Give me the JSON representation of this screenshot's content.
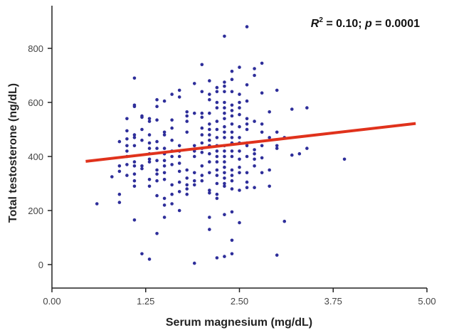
{
  "chart_data": {
    "type": "scatter",
    "title": "",
    "annotation": "R² = 0.10; p = 0.0001",
    "annotation_parts": {
      "r": "R",
      "sup": "2",
      "mid": " = 0.10; ",
      "p": "p",
      "end": " = 0.0001"
    },
    "xlabel": "Serum magnesium (mg/dL)",
    "ylabel": "Total testosterone (ng/dL)",
    "xlim": [
      0,
      5
    ],
    "ylim": [
      -80,
      960
    ],
    "xticks": [
      0,
      1.25,
      2.5,
      3.75,
      5
    ],
    "xtick_labels": [
      "0.00",
      "1.25",
      "2.50",
      "3.75",
      "5.00"
    ],
    "yticks": [
      0,
      200,
      400,
      600,
      800
    ],
    "ytick_labels": [
      "0",
      "200",
      "400",
      "600",
      "800"
    ],
    "grid": false,
    "point_color": "#2e2e9a",
    "line_color": "#e0321c",
    "regression_line": {
      "x": [
        0.45,
        4.85
      ],
      "y": [
        382,
        522
      ]
    },
    "columns": [
      {
        "x": 0.6,
        "y": [
          225
        ]
      },
      {
        "x": 0.8,
        "y": [
          325
        ]
      },
      {
        "x": 0.9,
        "y": [
          455,
          365,
          345,
          260,
          230
        ]
      },
      {
        "x": 1.0,
        "y": [
          540,
          495,
          465,
          440,
          420,
          400,
          370,
          330
        ]
      },
      {
        "x": 1.1,
        "y": [
          690,
          590,
          585,
          480,
          470,
          440,
          380,
          365,
          335,
          310,
          290,
          165
        ]
      },
      {
        "x": 1.2,
        "y": [
          550,
          545,
          500,
          460,
          365,
          355,
          40
        ]
      },
      {
        "x": 1.3,
        "y": [
          540,
          530,
          480,
          450,
          430,
          410,
          390,
          380,
          315,
          290,
          20
        ]
      },
      {
        "x": 1.4,
        "y": [
          610,
          585,
          535,
          455,
          430,
          385,
          350,
          335,
          310,
          255,
          115
        ]
      },
      {
        "x": 1.5,
        "y": [
          605,
          490,
          480,
          430,
          410,
          385,
          365,
          340,
          315,
          245,
          220,
          175
        ]
      },
      {
        "x": 1.6,
        "y": [
          630,
          535,
          505,
          460,
          420,
          400,
          370,
          295,
          260,
          225
        ]
      },
      {
        "x": 1.7,
        "y": [
          645,
          620,
          440,
          420,
          400,
          375,
          345,
          305,
          270,
          200
        ]
      },
      {
        "x": 1.8,
        "y": [
          565,
          550,
          530,
          490,
          350,
          320,
          295,
          280,
          260
        ]
      },
      {
        "x": 1.9,
        "y": [
          670,
          560,
          440,
          420,
          400,
          340,
          310,
          295,
          5
        ]
      },
      {
        "x": 2.0,
        "y": [
          740,
          640,
          560,
          545,
          505,
          480,
          450,
          430,
          415,
          365,
          330,
          310
        ]
      },
      {
        "x": 2.1,
        "y": [
          680,
          630,
          610,
          560,
          520,
          500,
          480,
          460,
          440,
          410,
          380,
          340,
          275,
          265,
          175,
          130
        ]
      },
      {
        "x": 2.2,
        "y": [
          655,
          640,
          600,
          580,
          530,
          500,
          470,
          440,
          420,
          400,
          380,
          350,
          330,
          300,
          260,
          245,
          25
        ]
      },
      {
        "x": 2.3,
        "y": [
          845,
          675,
          660,
          640,
          600,
          580,
          560,
          540,
          510,
          490,
          470,
          440,
          420,
          400,
          380,
          360,
          340,
          320,
          300,
          290,
          185,
          30
        ]
      },
      {
        "x": 2.4,
        "y": [
          715,
          685,
          640,
          590,
          570,
          550,
          520,
          490,
          470,
          450,
          420,
          400,
          350,
          330,
          310,
          280,
          195,
          90,
          40
        ]
      },
      {
        "x": 2.5,
        "y": [
          730,
          630,
          600,
          580,
          555,
          510,
          470,
          450,
          420,
          390,
          360,
          340,
          275,
          155
        ]
      },
      {
        "x": 2.6,
        "y": [
          880,
          665,
          605,
          540,
          520,
          500,
          450,
          440,
          400,
          340,
          305,
          285
        ]
      },
      {
        "x": 2.7,
        "y": [
          725,
          700,
          530,
          425,
          410,
          390,
          365,
          285
        ]
      },
      {
        "x": 2.8,
        "y": [
          745,
          635,
          520,
          490,
          440,
          395,
          340
        ]
      },
      {
        "x": 2.9,
        "y": [
          565,
          470,
          350,
          290
        ]
      },
      {
        "x": 3.0,
        "y": [
          645,
          490,
          440,
          430,
          35
        ]
      },
      {
        "x": 3.1,
        "y": [
          470,
          160
        ]
      },
      {
        "x": 3.2,
        "y": [
          575,
          405
        ]
      },
      {
        "x": 3.3,
        "y": [
          410
        ]
      },
      {
        "x": 3.4,
        "y": [
          580,
          430
        ]
      },
      {
        "x": 3.9,
        "y": [
          390
        ]
      }
    ]
  }
}
